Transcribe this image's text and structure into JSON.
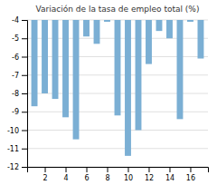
{
  "chart_data": {
    "type": "bar",
    "title": "Variación de la tasa de empleo total (%)",
    "x": [
      1,
      2,
      3,
      4,
      5,
      6,
      7,
      8,
      9,
      10,
      11,
      12,
      13,
      14,
      15,
      16,
      17
    ],
    "values": [
      -8.7,
      -8.0,
      -8.3,
      -9.3,
      -10.5,
      -4.9,
      -5.3,
      -4.1,
      -9.2,
      -11.4,
      -10.0,
      -6.4,
      -4.6,
      -5.0,
      -9.4,
      -4.1,
      -6.1
    ],
    "color": "#7bafd4",
    "xlim": [
      0.3,
      17.7
    ],
    "xticks": [
      2,
      4,
      6,
      8,
      10,
      12,
      14,
      16
    ],
    "ylim": [
      -12,
      -4
    ],
    "yticks": [
      -12,
      -11,
      -10,
      -9,
      -8,
      -7,
      -6,
      -5,
      -4
    ],
    "grid": true
  }
}
